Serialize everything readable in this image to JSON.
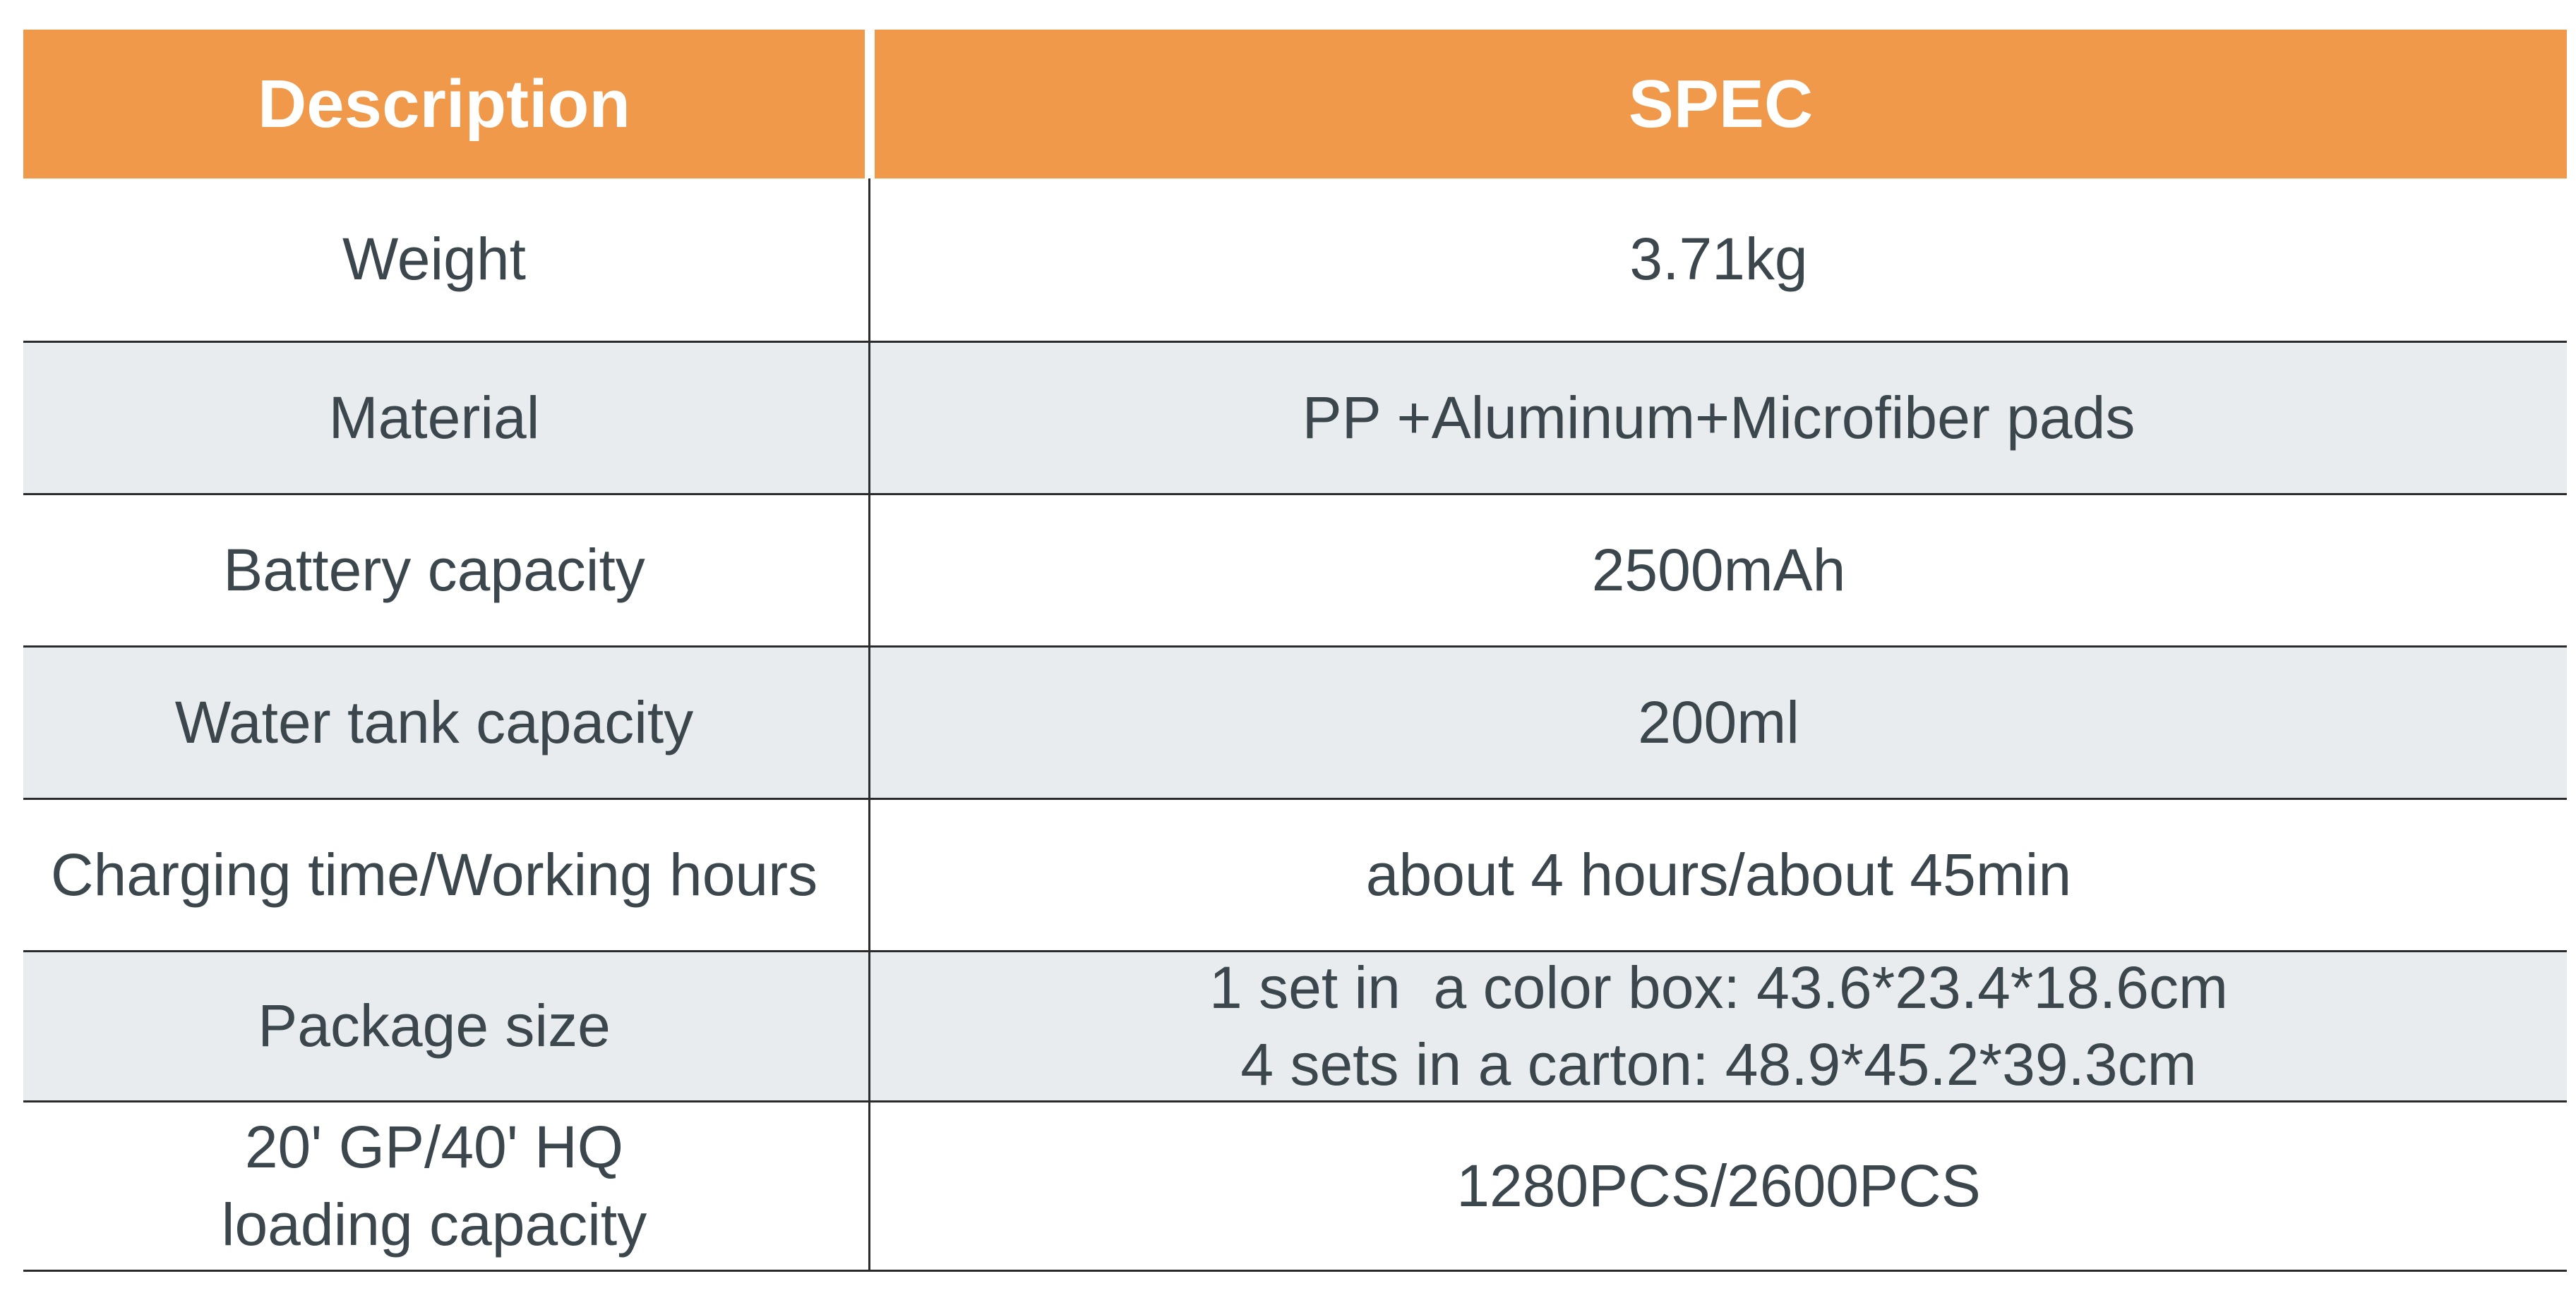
{
  "table": {
    "header": [
      "Description",
      "SPEC"
    ],
    "rows": [
      [
        [
          "Weight"
        ],
        [
          "3.71kg"
        ]
      ],
      [
        [
          "Material"
        ],
        [
          "PP +Aluminum+Microfiber pads"
        ]
      ],
      [
        [
          "Battery capacity"
        ],
        [
          "2500mAh"
        ]
      ],
      [
        [
          "Water tank capacity"
        ],
        [
          "200ml"
        ]
      ],
      [
        [
          "Charging time/Working hours"
        ],
        [
          "about 4 hours/about 45min"
        ]
      ],
      [
        [
          "Package size"
        ],
        [
          "1 set in  a color box: 43.6*23.4*18.6cm",
          "4 sets in a carton: 48.9*45.2*39.3cm"
        ]
      ],
      [
        [
          "20' GP/40' HQ",
          "loading capacity"
        ],
        [
          "1280PCS/2600PCS"
        ]
      ]
    ]
  }
}
